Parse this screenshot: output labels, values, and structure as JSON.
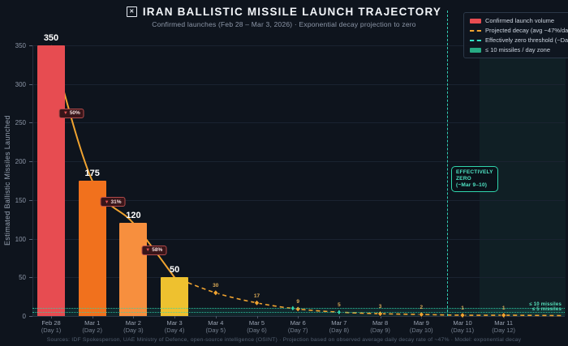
{
  "header": {
    "icon": "✕",
    "title": "IRAN BALLISTIC MISSILE LAUNCH TRAJECTORY",
    "subtitle": "Confirmed launches (Feb 28 – Mar 3, 2026)  ·  Exponential decay projection to zero"
  },
  "legend": {
    "items": [
      {
        "label": "Confirmed launch volume",
        "swatch": "rect",
        "color": "#e74c51"
      },
      {
        "label": "Projected decay (avg −47%/day)",
        "swatch": "line",
        "color": "#f0a330"
      },
      {
        "label": "Effectively zero threshold (~Day 10)",
        "swatch": "line",
        "color": "#35e0c4"
      },
      {
        "label": "≤ 10 missiles / day zone",
        "swatch": "rect",
        "color": "#27ab84"
      }
    ]
  },
  "chart_data": {
    "type": "bar+line",
    "title": "IRAN BALLISTIC MISSILE LAUNCH TRAJECTORY",
    "ylabel": "Estimated Ballistic Missiles Launched",
    "ylim": [
      0,
      350
    ],
    "yticks": [
      0,
      50,
      100,
      150,
      200,
      250,
      300,
      350
    ],
    "days": [
      {
        "date": "Feb 28",
        "day": "(Day 1)",
        "bar": 350
      },
      {
        "date": "Mar 1",
        "day": "(Day 2)",
        "bar": 175
      },
      {
        "date": "Mar 2",
        "day": "(Day 3)",
        "bar": 120
      },
      {
        "date": "Mar 3",
        "day": "(Day 4)",
        "bar": 50
      },
      {
        "date": "Mar 4",
        "day": "(Day 5)",
        "projected": 30
      },
      {
        "date": "Mar 5",
        "day": "(Day 6)",
        "projected": 17
      },
      {
        "date": "Mar 6",
        "day": "(Day 7)",
        "projected": 9
      },
      {
        "date": "Mar 7",
        "day": "(Day 8)",
        "projected": 5
      },
      {
        "date": "Mar 8",
        "day": "(Day 9)",
        "projected": 3
      },
      {
        "date": "Mar 9",
        "day": "(Day 10)",
        "projected": 2
      },
      {
        "date": "Mar 10",
        "day": "(Day 11)",
        "projected": 1
      },
      {
        "date": "Mar 11",
        "day": "(Day 12)",
        "projected": 1
      }
    ],
    "bar_colors": [
      "#e74c51",
      "#f1711d",
      "#f78f3e",
      "#eec12f"
    ],
    "line_color": "#f0a330",
    "threshold_color": "#2fd5ac",
    "decline_badges": [
      {
        "arrow": "▼",
        "label": "50%"
      },
      {
        "arrow": "▼",
        "label": "31%"
      },
      {
        "arrow": "▼",
        "label": "58%"
      }
    ],
    "thresholds": [
      {
        "value": 10,
        "label": "≤ 10 missiles"
      },
      {
        "value": 5,
        "label": "≤ 5 missiles"
      }
    ],
    "effective_zero": {
      "label_lines": [
        "EFFECTIVELY",
        "ZERO",
        "(~Mar 9–10)"
      ]
    }
  },
  "footer": {
    "text": "Sources: IDF Spokesperson, UAE Ministry of Defence, open-source intelligence (OSINT)  ·  Projection based on observed average daily decay rate of ~47%  ·  Model: exponential decay"
  }
}
